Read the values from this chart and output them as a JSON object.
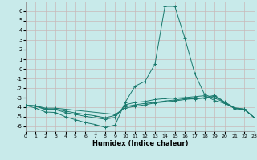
{
  "xlabel": "Humidex (Indice chaleur)",
  "bg_color": "#c8eaea",
  "grid_color": "#d4e8e8",
  "line_color": "#1a7a6e",
  "xlim": [
    0,
    23
  ],
  "ylim": [
    -6.5,
    7.0
  ],
  "xticks": [
    0,
    1,
    2,
    3,
    4,
    5,
    6,
    7,
    8,
    9,
    10,
    11,
    12,
    13,
    14,
    15,
    16,
    17,
    18,
    19,
    20,
    21,
    22,
    23
  ],
  "yticks": [
    -6,
    -5,
    -4,
    -3,
    -2,
    -1,
    0,
    1,
    2,
    3,
    4,
    5,
    6
  ],
  "line1_x": [
    0,
    1,
    2,
    3,
    4,
    5,
    6,
    7,
    8,
    9,
    10,
    11,
    12,
    13,
    14,
    15,
    16,
    17,
    18,
    19,
    20,
    21,
    22,
    23
  ],
  "line1_y": [
    -3.8,
    -4.1,
    -4.5,
    -4.55,
    -5.0,
    -5.3,
    -5.6,
    -5.8,
    -6.1,
    -5.85,
    -3.5,
    -1.8,
    -1.3,
    0.5,
    6.5,
    6.5,
    3.2,
    -0.5,
    -2.7,
    -3.05,
    -3.5,
    -4.1,
    -4.2,
    -5.1
  ],
  "line2_x": [
    0,
    1,
    2,
    3,
    4,
    5,
    6,
    7,
    8,
    9,
    10,
    11,
    12,
    13,
    14,
    15,
    16,
    17,
    18,
    19,
    20,
    21,
    22,
    23
  ],
  "line2_y": [
    -3.8,
    -3.9,
    -4.25,
    -4.25,
    -4.55,
    -4.75,
    -4.95,
    -5.1,
    -5.25,
    -5.05,
    -3.75,
    -3.5,
    -3.4,
    -3.2,
    -3.1,
    -3.05,
    -3.0,
    -2.9,
    -2.8,
    -3.3,
    -3.6,
    -4.1,
    -4.25,
    -5.1
  ],
  "line3_x": [
    0,
    1,
    2,
    3,
    4,
    5,
    6,
    7,
    8,
    9,
    10,
    11,
    12,
    13,
    14,
    15,
    16,
    17,
    18,
    19,
    20,
    21,
    22,
    23
  ],
  "line3_y": [
    -3.8,
    -3.85,
    -4.2,
    -4.2,
    -4.4,
    -4.6,
    -4.75,
    -4.9,
    -5.1,
    -4.85,
    -3.95,
    -3.75,
    -3.6,
    -3.5,
    -3.35,
    -3.25,
    -3.1,
    -3.15,
    -3.05,
    -2.85,
    -3.5,
    -4.15,
    -4.25,
    -5.1
  ],
  "line4_x": [
    0,
    1,
    2,
    3,
    9,
    10,
    11,
    12,
    13,
    14,
    15,
    16,
    17,
    18,
    19,
    20,
    21,
    22,
    23
  ],
  "line4_y": [
    -3.8,
    -3.85,
    -4.1,
    -4.1,
    -4.75,
    -4.1,
    -3.9,
    -3.75,
    -3.55,
    -3.45,
    -3.35,
    -3.2,
    -3.1,
    -3.0,
    -2.75,
    -3.45,
    -4.05,
    -4.2,
    -5.1
  ]
}
